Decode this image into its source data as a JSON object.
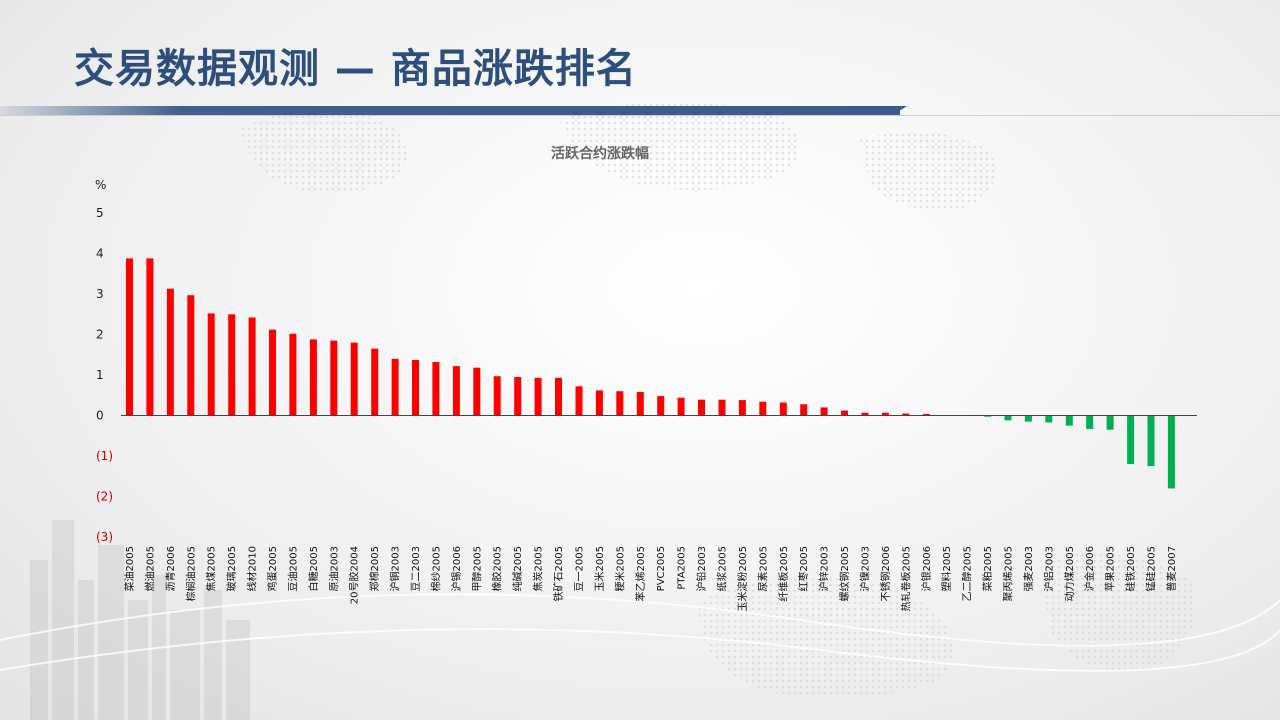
{
  "header": {
    "title": "交易数据观测 — 商品涨跌排名"
  },
  "colors": {
    "title": "#2e4f7e",
    "rise": "#ff0000",
    "fall": "#00b050",
    "negative_tick": "#c00000"
  },
  "chart_data": {
    "type": "bar",
    "title": "活跃合约涨跌幅",
    "ylabel": "%",
    "ylim": [
      -3,
      5
    ],
    "yticks": [
      {
        "value": 5,
        "label": "5"
      },
      {
        "value": 4,
        "label": "4"
      },
      {
        "value": 3,
        "label": "3"
      },
      {
        "value": 2,
        "label": "2"
      },
      {
        "value": 1,
        "label": "1"
      },
      {
        "value": 0,
        "label": "0"
      },
      {
        "value": -1,
        "label": "(1)"
      },
      {
        "value": -2,
        "label": "(2)"
      },
      {
        "value": -3,
        "label": "(3)"
      }
    ],
    "grid": false,
    "legend": "none",
    "categories": [
      "菜油2005",
      "燃油2005",
      "沥青2006",
      "棕榈油2005",
      "焦煤2005",
      "玻璃2005",
      "线材2010",
      "鸡蛋2005",
      "豆油2005",
      "白糖2005",
      "原油2003",
      "20号胶2004",
      "郑棉2005",
      "沪铜2003",
      "豆二2003",
      "棉纱2005",
      "沪锡2006",
      "甲醇2005",
      "橡胶2005",
      "纯碱2005",
      "焦炭2005",
      "铁矿石2005",
      "豆一2005",
      "玉米2005",
      "粳米2005",
      "苯乙烯2005",
      "PVC2005",
      "PTA2005",
      "沪铅2003",
      "纸浆2005",
      "玉米淀粉2005",
      "尿素2005",
      "纤维板2005",
      "红枣2005",
      "沪锌2003",
      "螺纹钢2005",
      "沪镍2003",
      "不锈钢2006",
      "热轧卷板2005",
      "沪银2006",
      "塑料2005",
      "乙二醇2005",
      "菜粕2005",
      "聚丙烯2005",
      "强麦2003",
      "沪铝2003",
      "动力煤2005",
      "沪金2006",
      "苹果2005",
      "硅铁2005",
      "锰硅2005",
      "普麦2007"
    ],
    "values": [
      3.88,
      3.88,
      3.13,
      2.97,
      2.52,
      2.5,
      2.42,
      2.12,
      2.02,
      1.88,
      1.85,
      1.8,
      1.65,
      1.4,
      1.37,
      1.32,
      1.22,
      1.18,
      0.97,
      0.95,
      0.93,
      0.93,
      0.72,
      0.62,
      0.6,
      0.58,
      0.48,
      0.44,
      0.39,
      0.39,
      0.38,
      0.34,
      0.32,
      0.28,
      0.2,
      0.12,
      0.07,
      0.07,
      0.05,
      0.04,
      0.0,
      0.0,
      -0.03,
      -0.12,
      -0.15,
      -0.17,
      -0.25,
      -0.33,
      -0.35,
      -1.2,
      -1.25,
      -1.8
    ]
  }
}
